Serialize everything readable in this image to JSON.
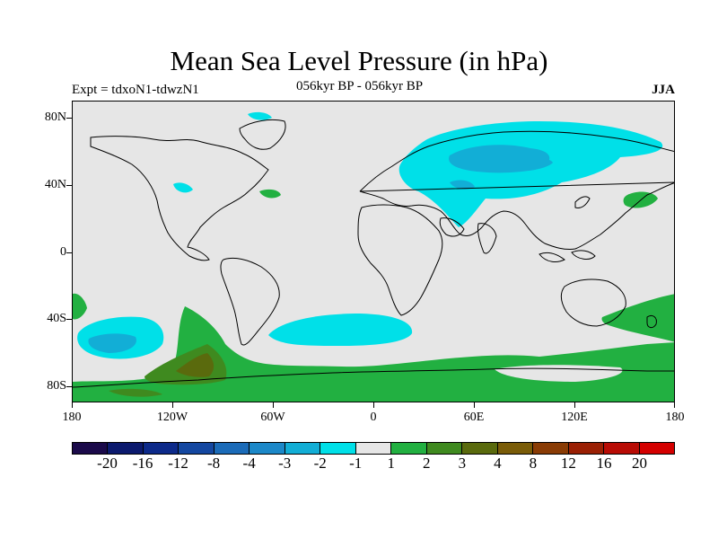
{
  "title": "Mean Sea Level Pressure (in hPa)",
  "subtitle": "056kyr BP - 056kyr BP",
  "left_label": "Expt = tdxoN1-tdwzN1",
  "right_label": "JJA",
  "axes": {
    "lat_ticks": [
      "80N",
      "40N",
      "0",
      "40S",
      "80S"
    ],
    "lon_ticks": [
      "180",
      "120W",
      "60W",
      "0",
      "60E",
      "120E",
      "180"
    ]
  },
  "colorbar": {
    "colors": [
      "#1b0a4a",
      "#0c1a6e",
      "#0d2a8a",
      "#1447a0",
      "#1b6bb8",
      "#1c88c8",
      "#12aed6",
      "#00e0e8",
      "#e6e6e6",
      "#22b041",
      "#3f8a1f",
      "#5a6a0d",
      "#7a5c08",
      "#8a3c05",
      "#9a2004",
      "#b80c05",
      "#d40000"
    ],
    "labels": [
      "-20",
      "-16",
      "-12",
      "-8",
      "-4",
      "-3",
      "-2",
      "-1",
      "1",
      "2",
      "3",
      "4",
      "8",
      "12",
      "16",
      "20"
    ]
  },
  "colors": {
    "neutral": "#e6e6e6",
    "cyan": "#00e0e8",
    "light_blue": "#12aed6",
    "green": "#22b041",
    "dark_green": "#3f8a1f",
    "olive": "#5a6a0d"
  }
}
